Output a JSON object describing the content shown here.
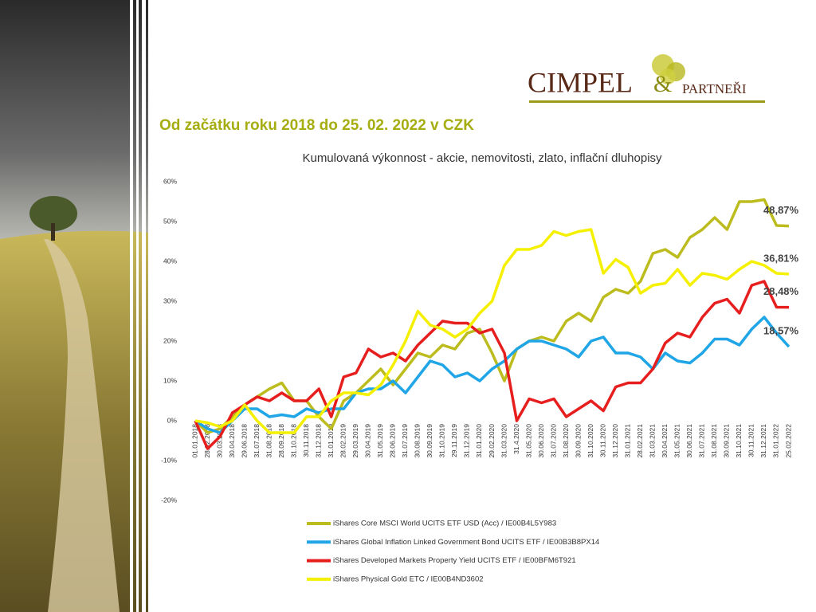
{
  "logo": {
    "name": "CIMPEL",
    "amp": "&",
    "partners": "PARTNEŘI"
  },
  "subtitle": "Od začátku roku 2018 do 25. 02. 2022 v CZK",
  "chart_data": {
    "type": "line",
    "title": "Kumulovaná výkonnost - akcie, nemovitosti, zlato, inflační dluhopisy",
    "categories": [
      "01.01.2018",
      "28.02.2018",
      "30.03.2018",
      "30.04.2018",
      "29.06.2018",
      "31.07.2018",
      "31.08.2018",
      "28.09.2018",
      "31.10.2018",
      "30.11.2018",
      "31.12.2018",
      "31.01.2019",
      "28.02.2019",
      "29.03.2019",
      "30.04.2019",
      "31.05.2019",
      "28.06.2019",
      "31.07.2019",
      "30.08.2019",
      "30.09.2019",
      "31.10.2019",
      "29.11.2019",
      "31.12.2019",
      "31.01.2020",
      "29.02.2020",
      "31.03.2020",
      "31.4.2020",
      "31.05.2020",
      "30.06.2020",
      "31.07.2020",
      "31.08.2020",
      "30.09.2020",
      "31.10.2020",
      "30.11.2020",
      "31.12.2020",
      "31.01.2021",
      "28.02.2021",
      "31.03.2021",
      "30.04.2021",
      "31.05.2021",
      "30.06.2021",
      "31.07.2021",
      "31.08.2021",
      "30.09.2021",
      "31.10.2021",
      "30.11.2021",
      "31.12.2021",
      "31.01.2022",
      "25.02.2022"
    ],
    "series": [
      {
        "name": "iShares Core MSCI World UCITS ETF USD (Acc) / IE00B4L5Y983",
        "color": "#bcbc1e",
        "values": [
          0,
          -3,
          -2,
          1,
          4,
          6,
          8,
          9.5,
          5,
          5,
          1,
          -2,
          5,
          7,
          10,
          13,
          9,
          13,
          17,
          16,
          19,
          18,
          22,
          23,
          17,
          10,
          18,
          20,
          21,
          20,
          25,
          27,
          25,
          31,
          33,
          32,
          35,
          42,
          43,
          41,
          46,
          48,
          51,
          48,
          55,
          55,
          55.5,
          49,
          48.87
        ],
        "value_labels": [
          null,
          null,
          null,
          null,
          null,
          null,
          null,
          null,
          null,
          null,
          null,
          null,
          null,
          null,
          null,
          null,
          null,
          null,
          null,
          null,
          null,
          null,
          null,
          null,
          null,
          null,
          null,
          null,
          null,
          null,
          null,
          null,
          null,
          null,
          null,
          null,
          null,
          null,
          null,
          null,
          null,
          null,
          null,
          null,
          null,
          null,
          null,
          null,
          "48,87%"
        ]
      },
      {
        "name": "iShares Global Inflation Linked Government Bond UCITS ETF / IE00B3B8PX14",
        "color": "#20a6e6",
        "values": [
          0,
          -2,
          -3,
          0,
          3,
          3,
          1,
          1.5,
          1,
          3,
          2,
          3,
          3,
          7,
          8,
          8,
          10,
          7,
          11,
          15,
          14,
          11,
          12,
          10,
          13,
          15,
          18,
          20,
          20,
          19,
          18,
          16,
          20,
          21,
          17,
          17,
          16,
          13,
          17,
          15,
          14.5,
          17,
          20.5,
          20.5,
          19,
          23,
          26,
          22,
          18.57
        ],
        "value_labels": [
          null,
          null,
          null,
          null,
          null,
          null,
          null,
          null,
          null,
          null,
          null,
          null,
          null,
          null,
          null,
          null,
          null,
          null,
          null,
          null,
          null,
          null,
          null,
          null,
          null,
          null,
          null,
          null,
          null,
          null,
          null,
          null,
          null,
          null,
          null,
          null,
          null,
          null,
          null,
          null,
          null,
          null,
          null,
          null,
          null,
          null,
          null,
          null,
          "18,57%"
        ]
      },
      {
        "name": "iShares Developed Markets Property Yield UCITS ETF / IE00BFM6T921",
        "color": "#e61e1e",
        "values": [
          0,
          -7,
          -4,
          2,
          4,
          6,
          5,
          7,
          5,
          5,
          8,
          1,
          11,
          12,
          18,
          16,
          17,
          15,
          19,
          22,
          25,
          24.5,
          24.5,
          22,
          23,
          17,
          0,
          5.5,
          4.5,
          5.5,
          1,
          3,
          5,
          2.5,
          8.5,
          9.5,
          9.5,
          13,
          19.5,
          22,
          21,
          26,
          29.5,
          30.5,
          27,
          34,
          35,
          28.5,
          28.48
        ],
        "value_labels": [
          null,
          null,
          null,
          null,
          null,
          null,
          null,
          null,
          null,
          null,
          null,
          null,
          null,
          null,
          null,
          null,
          null,
          null,
          null,
          null,
          null,
          null,
          null,
          null,
          null,
          null,
          null,
          null,
          null,
          null,
          null,
          null,
          null,
          null,
          null,
          null,
          null,
          null,
          null,
          null,
          null,
          null,
          null,
          null,
          null,
          null,
          null,
          null,
          "28,48%"
        ]
      },
      {
        "name": "iShares Physical Gold ETC / IE00B4ND3602",
        "color": "#f5f000",
        "values": [
          0,
          -0.5,
          -1.5,
          0,
          4,
          0,
          -3,
          -3,
          -3,
          1,
          1,
          5,
          7,
          7,
          6.5,
          9,
          14,
          20,
          27.5,
          24,
          23,
          21,
          23,
          27,
          30,
          39,
          43,
          43,
          44,
          47.5,
          46.5,
          47.5,
          48,
          37,
          40.5,
          38.5,
          32,
          34,
          34.5,
          38,
          34,
          37,
          36.5,
          35.5,
          38,
          40,
          39,
          37,
          36.81
        ],
        "value_labels": [
          null,
          null,
          null,
          null,
          null,
          null,
          null,
          null,
          null,
          null,
          null,
          null,
          null,
          null,
          null,
          null,
          null,
          null,
          null,
          null,
          null,
          null,
          null,
          null,
          null,
          null,
          null,
          null,
          null,
          null,
          null,
          null,
          null,
          null,
          null,
          null,
          null,
          null,
          null,
          null,
          null,
          null,
          null,
          null,
          null,
          null,
          null,
          null,
          "36,81%"
        ]
      }
    ],
    "ylim": [
      -20,
      60
    ],
    "yticks": [
      {
        "value": -20,
        "label": "-20%"
      },
      {
        "value": -10,
        "label": "-10%"
      },
      {
        "value": 0,
        "label": "0%"
      },
      {
        "value": 10,
        "label": "10%"
      },
      {
        "value": 20,
        "label": "20%"
      },
      {
        "value": 30,
        "label": "30%"
      },
      {
        "value": 40,
        "label": "40%"
      },
      {
        "value": 50,
        "label": "50%"
      },
      {
        "value": 60,
        "label": "60%"
      }
    ],
    "grid": false,
    "legend": "bottom"
  }
}
